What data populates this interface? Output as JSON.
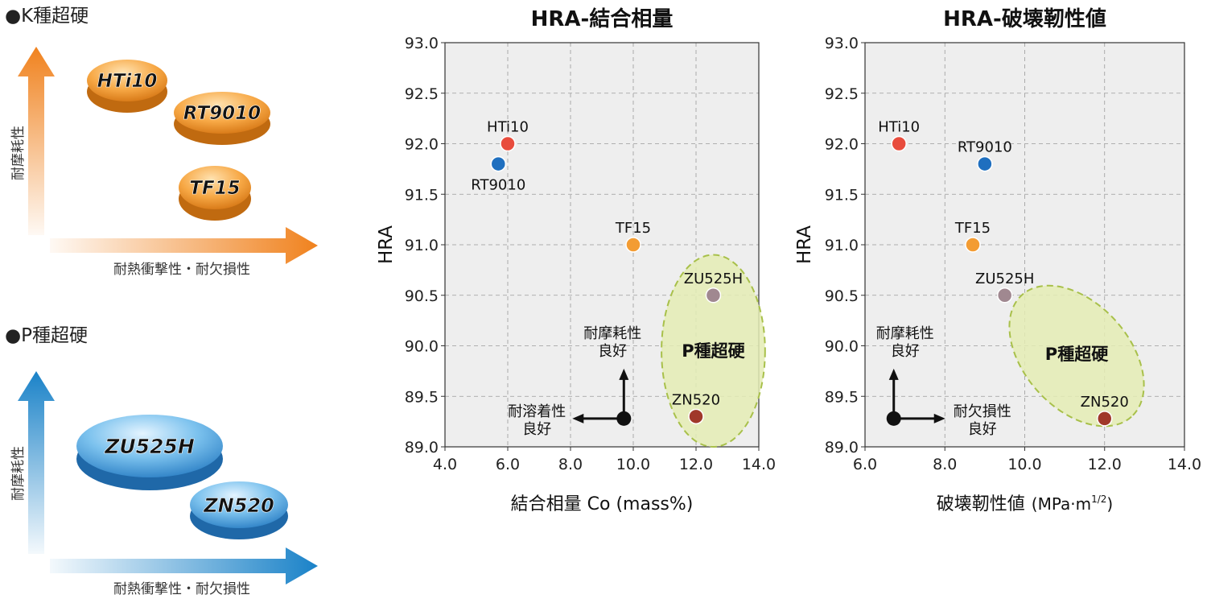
{
  "left_panel": {
    "k_section": {
      "heading": "●K種超硬",
      "y_axis_label": "耐摩耗性",
      "x_axis_label": "耐熱衝撃性・耐欠損性",
      "arrow_color": "#f0821e",
      "grades": [
        "HTi10",
        "RT9010",
        "TF15"
      ]
    },
    "p_section": {
      "heading": "●P種超硬",
      "y_axis_label": "耐摩耗性",
      "x_axis_label": "耐熱衝撃性・耐欠損性",
      "arrow_color": "#1a82c8",
      "grades": [
        "ZU525H",
        "ZN520"
      ]
    }
  },
  "chart_data": [
    {
      "type": "scatter",
      "title": "HRA-結合相量",
      "xlabel": "結合相量 Co (mass%)",
      "ylabel": "HRA",
      "xlim": [
        4.0,
        14.0
      ],
      "ylim": [
        89.0,
        93.0
      ],
      "xticks": [
        "4.0",
        "6.0",
        "8.0",
        "10.0",
        "12.0",
        "14.0"
      ],
      "yticks": [
        "89.0",
        "89.5",
        "90.0",
        "90.5",
        "91.0",
        "91.5",
        "92.0",
        "92.5",
        "93.0"
      ],
      "grid": true,
      "points": [
        {
          "name": "HTi10",
          "x": 6.0,
          "y": 92.0,
          "color": "#e84c3d",
          "label_pos": "above"
        },
        {
          "name": "RT9010",
          "x": 5.7,
          "y": 91.8,
          "color": "#1f6fbf",
          "label_pos": "below"
        },
        {
          "name": "TF15",
          "x": 10.0,
          "y": 91.0,
          "color": "#f39c33",
          "label_pos": "above"
        },
        {
          "name": "ZU525H",
          "x": 12.55,
          "y": 90.5,
          "color": "#a08890",
          "label_pos": "above"
        },
        {
          "name": "ZN520",
          "x": 12.0,
          "y": 89.3,
          "color": "#a0382a",
          "label_pos": "above"
        }
      ],
      "region": {
        "label": "P種超硬",
        "cx": 12.55,
        "cy": 89.95,
        "rx": 1.65,
        "ry": 0.95,
        "rotation_deg": 0
      },
      "legend_arrows": {
        "up_label": [
          "耐摩耗性",
          "良好"
        ],
        "side_label": [
          "耐溶着性",
          "良好"
        ],
        "direction": "left",
        "ox": 9.7,
        "oy": 89.28
      }
    },
    {
      "type": "scatter",
      "title": "HRA-破壊靭性値",
      "xlabel": "破壊靭性値",
      "xlabel_unit": "(MPa·m",
      "xlabel_sup": "1/2",
      "xlabel_close": ")",
      "ylabel": "HRA",
      "xlim": [
        6.0,
        14.0
      ],
      "ylim": [
        89.0,
        93.0
      ],
      "xticks": [
        "6.0",
        "8.0",
        "10.0",
        "12.0",
        "14.0"
      ],
      "yticks": [
        "89.0",
        "89.5",
        "90.0",
        "90.5",
        "91.0",
        "91.5",
        "92.0",
        "92.5",
        "93.0"
      ],
      "grid": true,
      "points": [
        {
          "name": "HTi10",
          "x": 6.85,
          "y": 92.0,
          "color": "#e84c3d",
          "label_pos": "above"
        },
        {
          "name": "RT9010",
          "x": 9.0,
          "y": 91.8,
          "color": "#1f6fbf",
          "label_pos": "above"
        },
        {
          "name": "TF15",
          "x": 8.7,
          "y": 91.0,
          "color": "#f39c33",
          "label_pos": "above"
        },
        {
          "name": "ZU525H",
          "x": 9.5,
          "y": 90.5,
          "color": "#a08890",
          "label_pos": "above"
        },
        {
          "name": "ZN520",
          "x": 12.0,
          "y": 89.28,
          "color": "#a0382a",
          "label_pos": "above"
        }
      ],
      "region": {
        "label": "P種超硬",
        "cx": 11.3,
        "cy": 89.9,
        "rx": 2.05,
        "ry": 0.52,
        "rotation_deg": 48
      },
      "legend_arrows": {
        "up_label": [
          "耐摩耗性",
          "良好"
        ],
        "side_label": [
          "耐欠損性",
          "良好"
        ],
        "direction": "right",
        "ox": 6.72,
        "oy": 89.28
      }
    }
  ]
}
